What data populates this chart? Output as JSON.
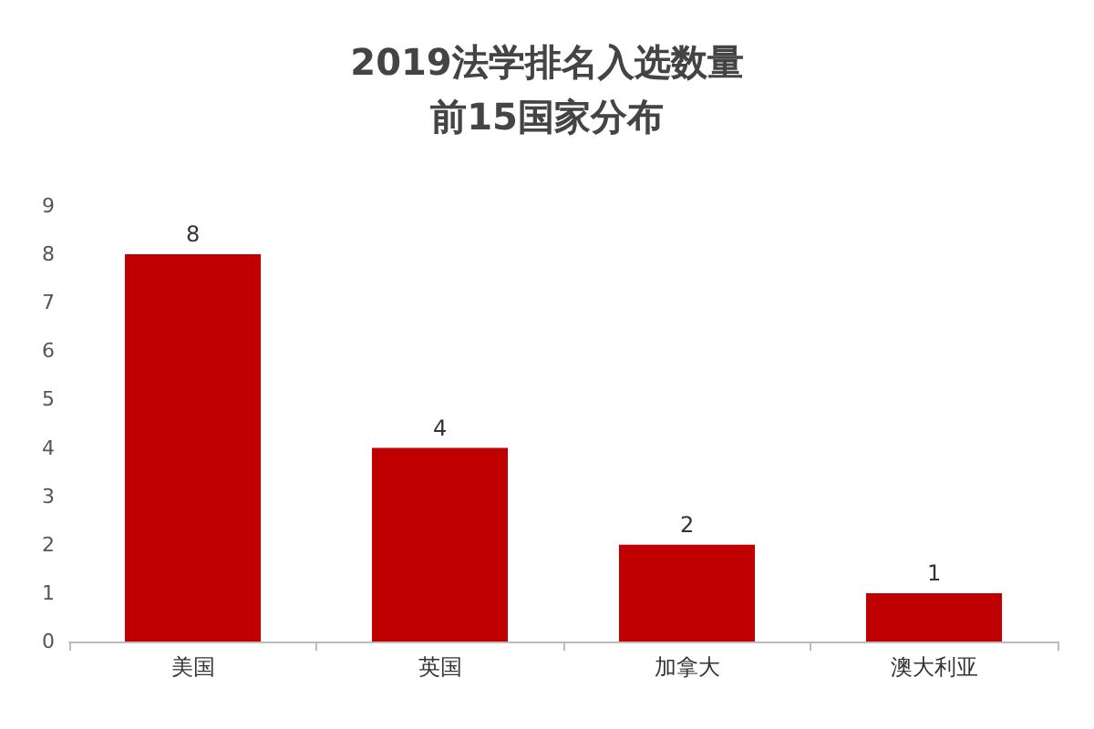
{
  "chart_data": {
    "type": "bar",
    "title": "2019法学排名入选数量前15国家分布",
    "categories": [
      "美国",
      "英国",
      "加拿大",
      "澳大利亚"
    ],
    "values": [
      8,
      4,
      2,
      1
    ],
    "color": "#c00000",
    "ylim": [
      0,
      9
    ],
    "yticks": [
      0,
      1,
      2,
      3,
      4,
      5,
      6,
      7,
      8,
      9
    ],
    "grid": false,
    "data_labels": true
  }
}
